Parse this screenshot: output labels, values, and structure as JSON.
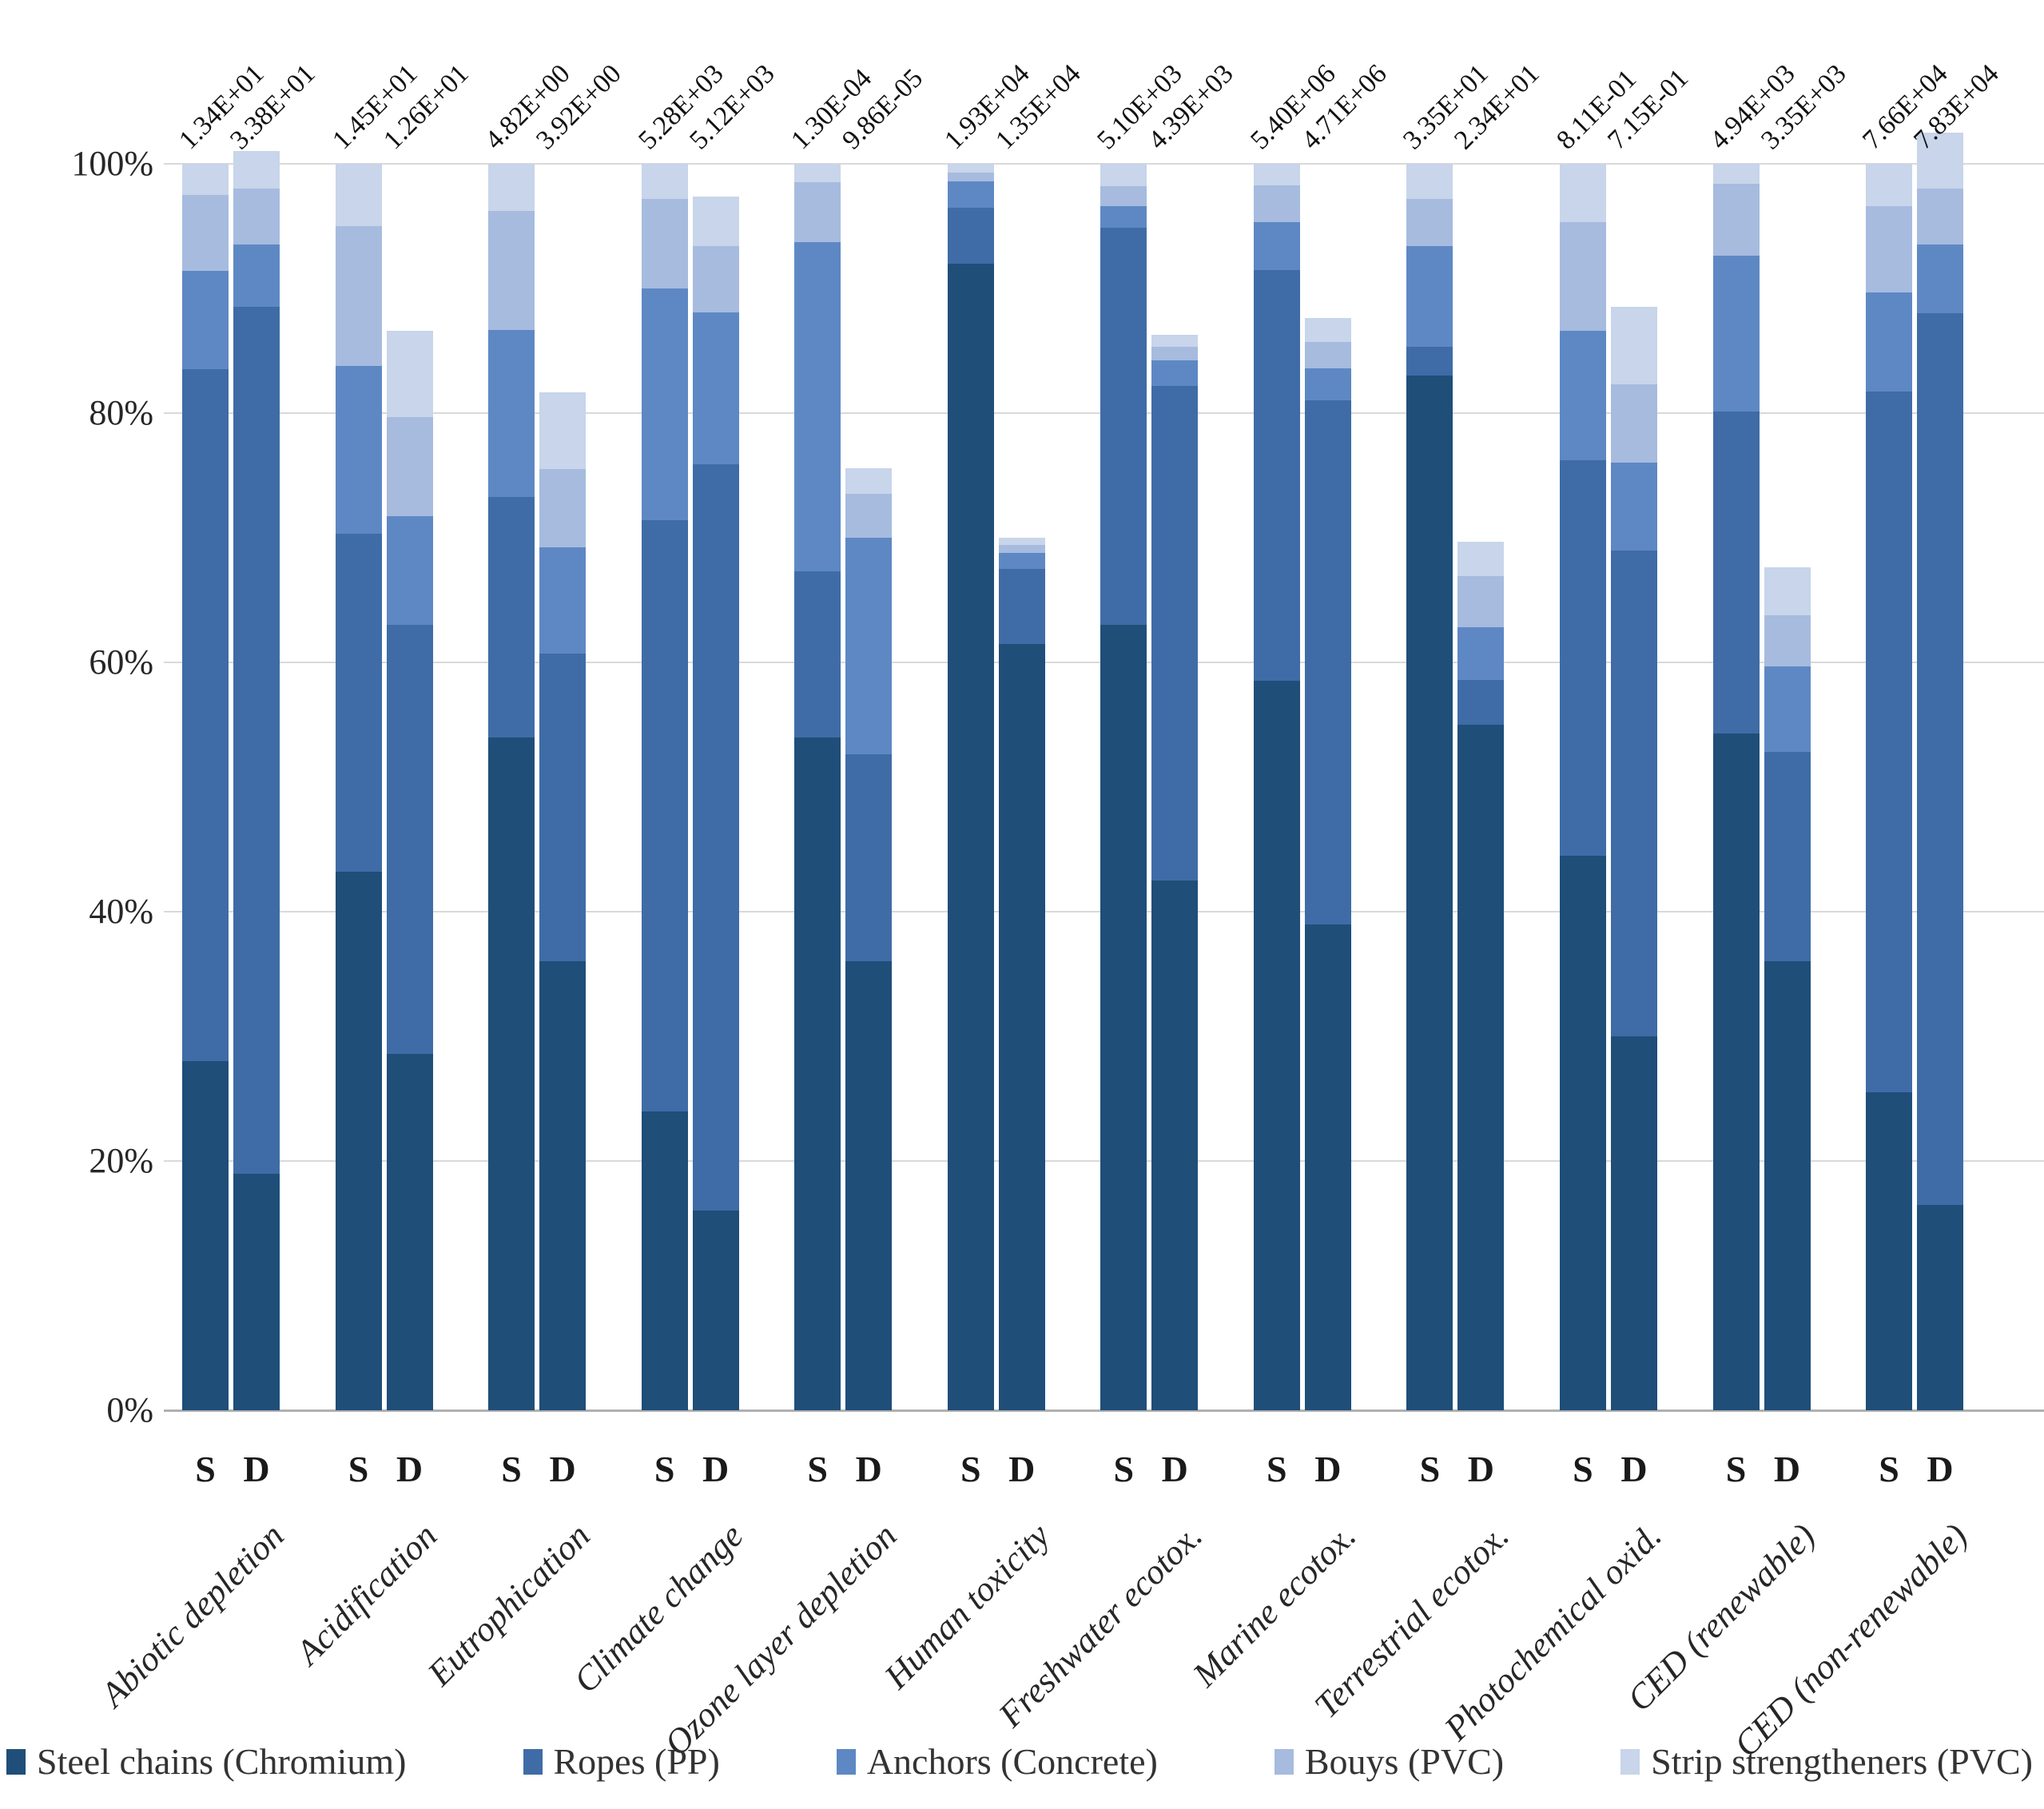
{
  "chart_data": {
    "type": "bar",
    "stacked": true,
    "normalized_axis": "percent",
    "title": "",
    "xlabel": "",
    "ylabel": "",
    "ylim": [
      0,
      100
    ],
    "grid": true,
    "ytick_labels": [
      "100%",
      "80%",
      "60%",
      "40%",
      "20%",
      "0%"
    ],
    "ytick_values": [
      100,
      80,
      60,
      40,
      20,
      0
    ],
    "bar_sublabels": [
      "S",
      "D"
    ],
    "legend_position": "bottom",
    "series": [
      {
        "name": "Steel chains (Chromium)",
        "color": "#1f4e79"
      },
      {
        "name": "Ropes (PP)",
        "color": "#3f6ca6"
      },
      {
        "name": "Anchors (Concrete)",
        "color": "#5e88c4"
      },
      {
        "name": "Bouys (PVC)",
        "color": "#a6bbde"
      },
      {
        "name": "Strip strengtheners (PVC)",
        "color": "#c8d5ea"
      }
    ],
    "categories": [
      {
        "label": "Abiotic depletion",
        "value_label_s": "1.34E+01",
        "value_label_d": "3.38E+01",
        "s_segments": [
          28,
          55.5,
          7.9,
          6.1,
          2.5
        ],
        "d_segments": [
          19,
          69.5,
          5,
          4.5,
          3
        ]
      },
      {
        "label": "Acidification",
        "value_label_s": "1.45E+01",
        "value_label_d": "1.26E+01",
        "s_segments": [
          43.2,
          27.1,
          13.5,
          11.2,
          5
        ],
        "d_segments": [
          28.6,
          34.4,
          8.7,
          8,
          6.9
        ]
      },
      {
        "label": "Eutrophication",
        "value_label_s": "4.82E+00",
        "value_label_d": "3.92E+00",
        "s_segments": [
          54,
          19.3,
          13.4,
          9.5,
          3.8
        ],
        "d_segments": [
          36,
          24.7,
          8.5,
          6.3,
          6.2
        ]
      },
      {
        "label": "Climate change",
        "value_label_s": "5.28E+03",
        "value_label_d": "5.12E+03",
        "s_segments": [
          24,
          47.4,
          18.6,
          7.2,
          2.8
        ],
        "d_segments": [
          16,
          59.9,
          12.2,
          5.3,
          4
        ]
      },
      {
        "label": "Ozone layer depletion",
        "value_label_s": "1.30E-04",
        "value_label_d": "9.86E-05",
        "s_segments": [
          54,
          13.3,
          26.4,
          4.8,
          1.5
        ],
        "d_segments": [
          36,
          16.6,
          17.4,
          3.5,
          2.1
        ]
      },
      {
        "label": "Human toxicity",
        "value_label_s": "1.93E+04",
        "value_label_d": "1.35E+04",
        "s_segments": [
          92,
          4.5,
          2.1,
          0.7,
          0.7
        ],
        "d_segments": [
          61.5,
          6,
          1.3,
          0.6,
          0.6
        ]
      },
      {
        "label": "Freshwater ecotox.",
        "value_label_s": "5.10E+03",
        "value_label_d": "4.39E+03",
        "s_segments": [
          63,
          31.9,
          1.7,
          1.6,
          1.8
        ],
        "d_segments": [
          42.5,
          39.7,
          2,
          1.1,
          1
        ]
      },
      {
        "label": "Marine ecotox.",
        "value_label_s": "5.40E+06",
        "value_label_d": "4.71E+06",
        "s_segments": [
          58.5,
          33,
          3.8,
          3,
          1.7
        ],
        "d_segments": [
          39,
          42,
          2.6,
          2.1,
          1.9
        ]
      },
      {
        "label": "Terrestrial ecotox.",
        "value_label_s": "3.35E+01",
        "value_label_d": "2.34E+01",
        "s_segments": [
          83,
          2.3,
          8.1,
          3.8,
          2.8
        ],
        "d_segments": [
          55,
          3.6,
          4.2,
          4.1,
          2.8
        ]
      },
      {
        "label": "Photochemical oxid.",
        "value_label_s": "8.11E-01",
        "value_label_d": "7.15E-01",
        "s_segments": [
          44.5,
          31.7,
          10.4,
          8.7,
          4.7
        ],
        "d_segments": [
          30,
          39,
          7,
          6.3,
          6.2
        ]
      },
      {
        "label": "CED (renewable)",
        "value_label_s": "4.94E+03",
        "value_label_d": "3.35E+03",
        "s_segments": [
          54.3,
          25.8,
          12.5,
          5.8,
          1.6
        ],
        "d_segments": [
          36,
          16.8,
          6.9,
          4.1,
          3.8
        ]
      },
      {
        "label": "CED (non-renewable)",
        "value_label_s": "7.66E+04",
        "value_label_d": "7.83E+04",
        "s_segments": [
          25.5,
          56.2,
          8,
          6.9,
          3.4
        ],
        "d_segments": [
          16.5,
          71.5,
          5.5,
          4.5,
          4.5
        ]
      }
    ]
  },
  "legend": {
    "items": [
      "Steel chains (Chromium)",
      "Ropes (PP)",
      "Anchors (Concrete)",
      "Bouys (PVC)",
      "Strip strengtheners (PVC)"
    ]
  }
}
